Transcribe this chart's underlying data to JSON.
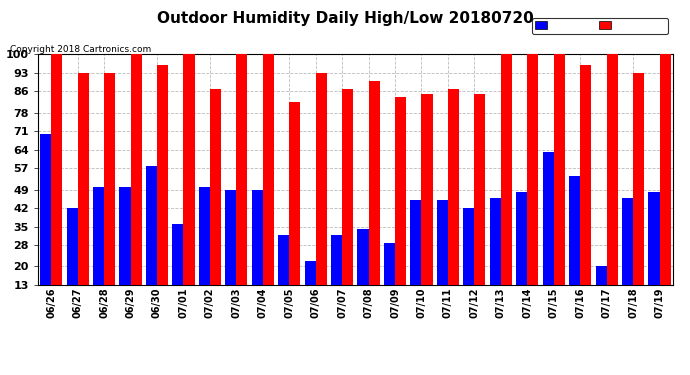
{
  "title": "Outdoor Humidity Daily High/Low 20180720",
  "copyright": "Copyright 2018 Cartronics.com",
  "dates": [
    "06/26",
    "06/27",
    "06/28",
    "06/29",
    "06/30",
    "07/01",
    "07/02",
    "07/03",
    "07/04",
    "07/05",
    "07/06",
    "07/07",
    "07/08",
    "07/09",
    "07/10",
    "07/11",
    "07/12",
    "07/13",
    "07/14",
    "07/15",
    "07/16",
    "07/17",
    "07/18",
    "07/19"
  ],
  "high": [
    100,
    93,
    93,
    100,
    96,
    100,
    87,
    100,
    100,
    82,
    93,
    87,
    90,
    84,
    85,
    87,
    85,
    100,
    100,
    100,
    96,
    100,
    93,
    100
  ],
  "low": [
    70,
    42,
    50,
    50,
    58,
    36,
    50,
    49,
    49,
    32,
    22,
    32,
    34,
    29,
    45,
    45,
    42,
    46,
    48,
    63,
    54,
    20,
    46,
    48
  ],
  "bg_color": "#ffffff",
  "bar_color_high": "#ff0000",
  "bar_color_low": "#0000ff",
  "title_fontsize": 11,
  "ylabel_ticks": [
    13,
    20,
    28,
    35,
    42,
    49,
    57,
    64,
    71,
    78,
    86,
    93,
    100
  ],
  "ymin": 13,
  "ymax": 100,
  "grid_color": "#bbbbbb"
}
